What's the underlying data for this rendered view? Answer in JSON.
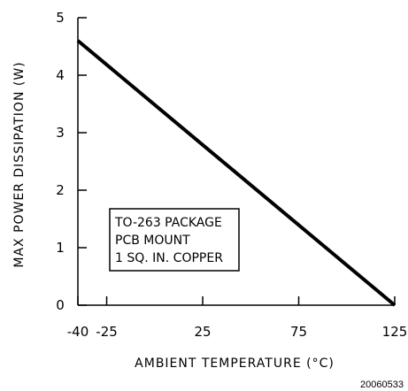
{
  "chart_data": {
    "type": "line",
    "title": "",
    "xlabel": "AMBIENT TEMPERATURE (°C)",
    "ylabel": "MAX POWER DISSIPATION (W)",
    "xlim": [
      -40,
      125
    ],
    "ylim": [
      0,
      5
    ],
    "x_ticks": [
      -40,
      -25,
      25,
      75,
      125
    ],
    "y_ticks": [
      0,
      1,
      2,
      3,
      4,
      5
    ],
    "grid": false,
    "series": [
      {
        "points": [
          {
            "x": -40,
            "y": 4.6
          },
          {
            "x": 125,
            "y": 0
          }
        ]
      }
    ],
    "annotation_lines": [
      "TO-263 PACKAGE",
      "PCB MOUNT",
      "1 SQ. IN. COPPER"
    ],
    "figure_code": "20060533",
    "colors": {
      "line": "#000000",
      "axis": "#000000",
      "background": "#ffffff"
    }
  }
}
